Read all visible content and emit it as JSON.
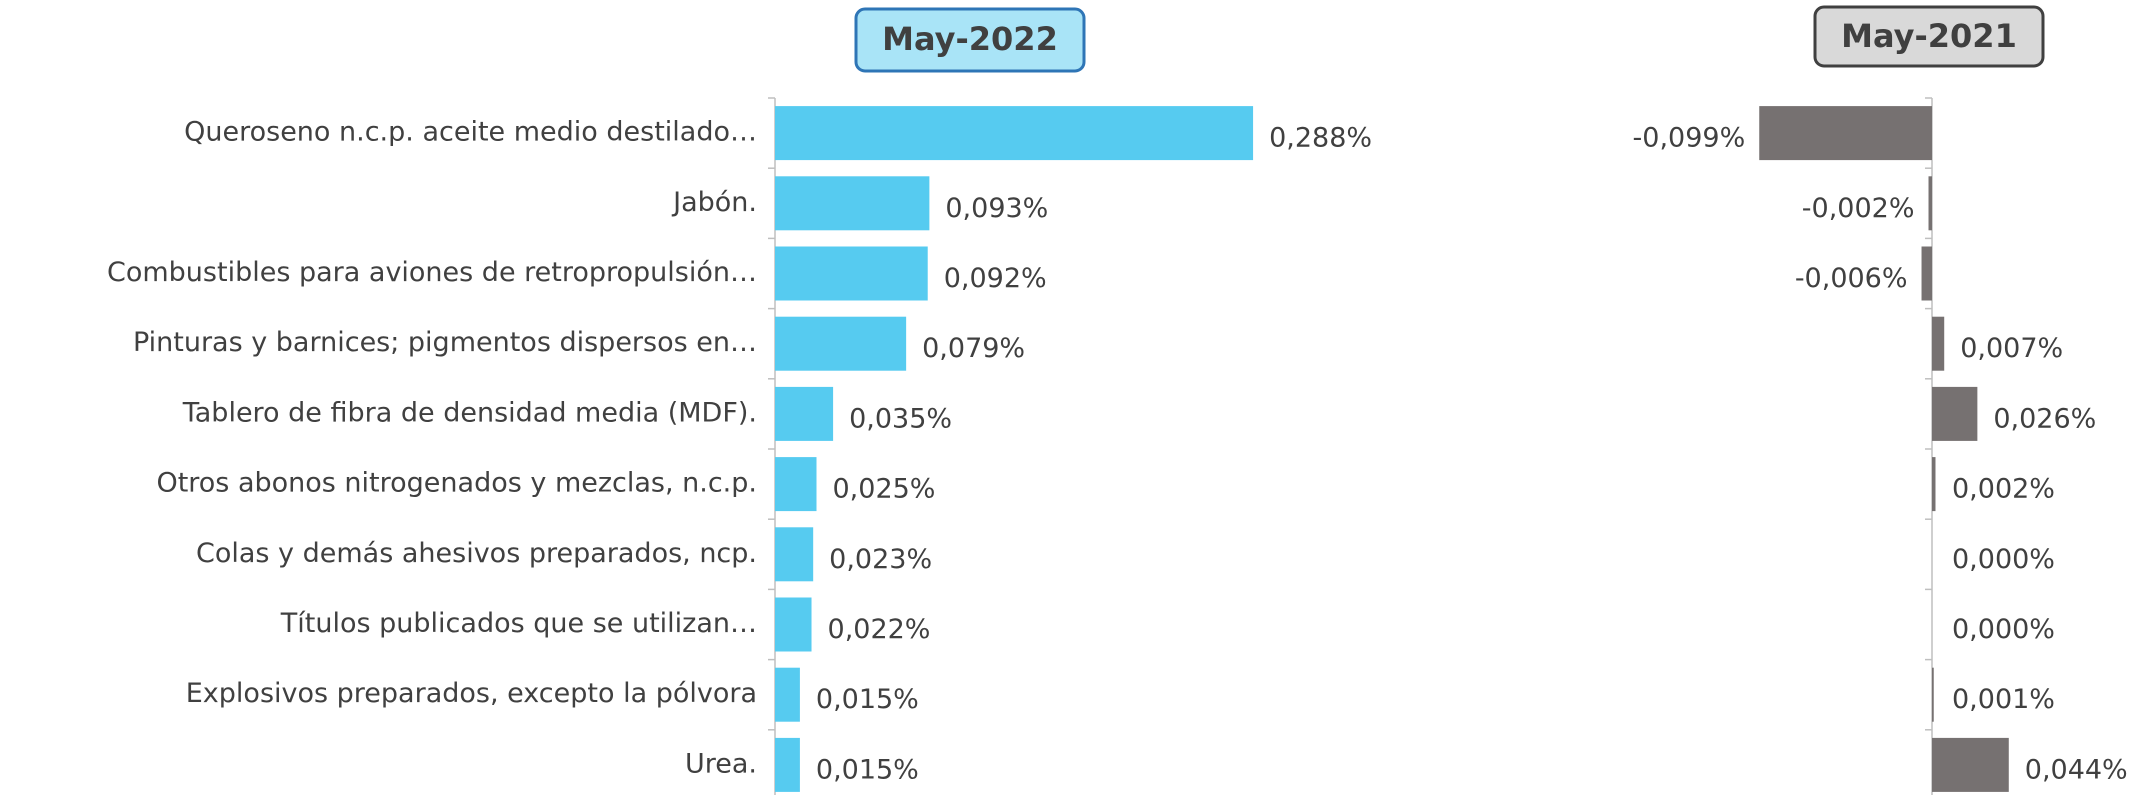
{
  "chart_data": [
    {
      "type": "barh",
      "title": "May-2022",
      "color": "#56cbf0",
      "categories": [
        "Queroseno n.c.p. aceite medio destilado…",
        "Jabón.",
        "Combustibles para aviones de retropropulsión…",
        "Pinturas y barnices; pigmentos dispersos en…",
        "Tablero de fibra de densidad media (MDF).",
        "Otros abonos nitrogenados y mezclas, n.c.p.",
        "Colas y demás ahesivos preparados, ncp.",
        "Títulos publicados que se utilizan…",
        "Explosivos preparados, excepto la pólvora",
        "Urea."
      ],
      "values": [
        0.288,
        0.093,
        0.092,
        0.079,
        0.035,
        0.025,
        0.023,
        0.022,
        0.015,
        0.015
      ],
      "value_labels": [
        "0,288%",
        "0,093%",
        "0,092%",
        "0,079%",
        "0,035%",
        "0,025%",
        "0,023%",
        "0,022%",
        "0,015%",
        "0,015%"
      ]
    },
    {
      "type": "barh",
      "title": "May-2021",
      "color": "#767171",
      "values": [
        -0.099,
        -0.002,
        -0.006,
        0.007,
        0.026,
        0.002,
        0.0,
        0.0,
        0.001,
        0.044
      ],
      "value_labels": [
        "-0,099%",
        "-0,002%",
        "-0,006%",
        "0,007%",
        "0,026%",
        "0,002%",
        "0,000%",
        "0,000%",
        "0,001%",
        "0,044%"
      ]
    }
  ]
}
